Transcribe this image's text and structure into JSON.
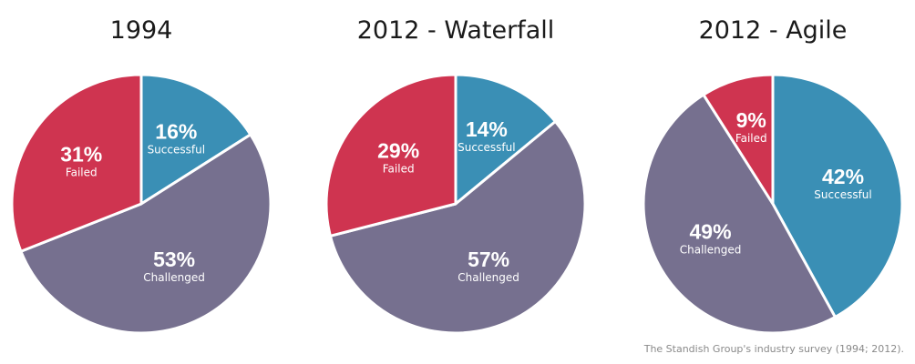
{
  "chart_data": [
    {
      "type": "pie",
      "title": "1994",
      "start_category": "Successful",
      "slices": [
        {
          "category": "Successful",
          "value": 16,
          "label": "16%",
          "color": "#3a8fb5"
        },
        {
          "category": "Challenged",
          "value": 53,
          "label": "53%",
          "color": "#76708f"
        },
        {
          "category": "Failed",
          "value": 31,
          "label": "31%",
          "color": "#cf3450"
        }
      ]
    },
    {
      "type": "pie",
      "title": "2012 - Waterfall",
      "start_category": "Successful",
      "slices": [
        {
          "category": "Successful",
          "value": 14,
          "label": "14%",
          "color": "#3a8fb5"
        },
        {
          "category": "Challenged",
          "value": 57,
          "label": "57%",
          "color": "#76708f"
        },
        {
          "category": "Failed",
          "value": 29,
          "label": "29%",
          "color": "#cf3450"
        }
      ]
    },
    {
      "type": "pie",
      "title": "2012 - Agile",
      "start_category": "Successful",
      "slices": [
        {
          "category": "Successful",
          "value": 42,
          "label": "42%",
          "color": "#3a8fb5"
        },
        {
          "category": "Challenged",
          "value": 49,
          "label": "49%",
          "color": "#76708f"
        },
        {
          "category": "Failed",
          "value": 9,
          "label": "9%",
          "color": "#cf3450"
        }
      ]
    }
  ],
  "source_note": "The Standish Group's industry survey (1994; 2012)."
}
